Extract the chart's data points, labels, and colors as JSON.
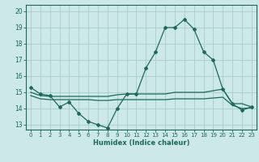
{
  "xlabel": "Humidex (Indice chaleur)",
  "background_color": "#cce8e8",
  "grid_color": "#aacccc",
  "line_color": "#1a6b5a",
  "xlim": [
    -0.5,
    23.5
  ],
  "ylim": [
    12.7,
    20.4
  ],
  "yticks": [
    13,
    14,
    15,
    16,
    17,
    18,
    19,
    20
  ],
  "xticks": [
    0,
    1,
    2,
    3,
    4,
    5,
    6,
    7,
    8,
    9,
    10,
    11,
    12,
    13,
    14,
    15,
    16,
    17,
    18,
    19,
    20,
    21,
    22,
    23
  ],
  "series1_x": [
    0,
    1,
    2,
    3,
    4,
    5,
    6,
    7,
    8,
    9,
    10,
    11,
    12,
    13,
    14,
    15,
    16,
    17,
    18,
    19,
    20,
    21,
    22,
    23
  ],
  "series1_y": [
    15.3,
    14.9,
    14.8,
    14.1,
    14.4,
    13.7,
    13.2,
    13.0,
    12.8,
    14.0,
    14.9,
    14.9,
    16.5,
    17.5,
    19.0,
    19.0,
    19.5,
    18.9,
    17.5,
    17.0,
    15.2,
    14.3,
    13.9,
    14.1
  ],
  "series2_x": [
    0,
    1,
    2,
    3,
    4,
    5,
    6,
    7,
    8,
    9,
    10,
    11,
    12,
    13,
    14,
    15,
    16,
    17,
    18,
    19,
    20,
    21,
    22,
    23
  ],
  "series2_y": [
    15.0,
    14.8,
    14.75,
    14.75,
    14.75,
    14.75,
    14.75,
    14.75,
    14.75,
    14.85,
    14.9,
    14.9,
    14.9,
    14.9,
    14.9,
    15.0,
    15.0,
    15.0,
    15.0,
    15.1,
    15.2,
    14.3,
    14.3,
    14.1
  ],
  "series3_x": [
    0,
    1,
    2,
    3,
    4,
    5,
    6,
    7,
    8,
    9,
    10,
    11,
    12,
    13,
    14,
    15,
    16,
    17,
    18,
    19,
    20,
    21,
    22,
    23
  ],
  "series3_y": [
    14.8,
    14.6,
    14.55,
    14.55,
    14.55,
    14.55,
    14.55,
    14.5,
    14.5,
    14.55,
    14.55,
    14.55,
    14.55,
    14.55,
    14.55,
    14.6,
    14.6,
    14.6,
    14.6,
    14.65,
    14.7,
    14.2,
    14.0,
    14.05
  ]
}
